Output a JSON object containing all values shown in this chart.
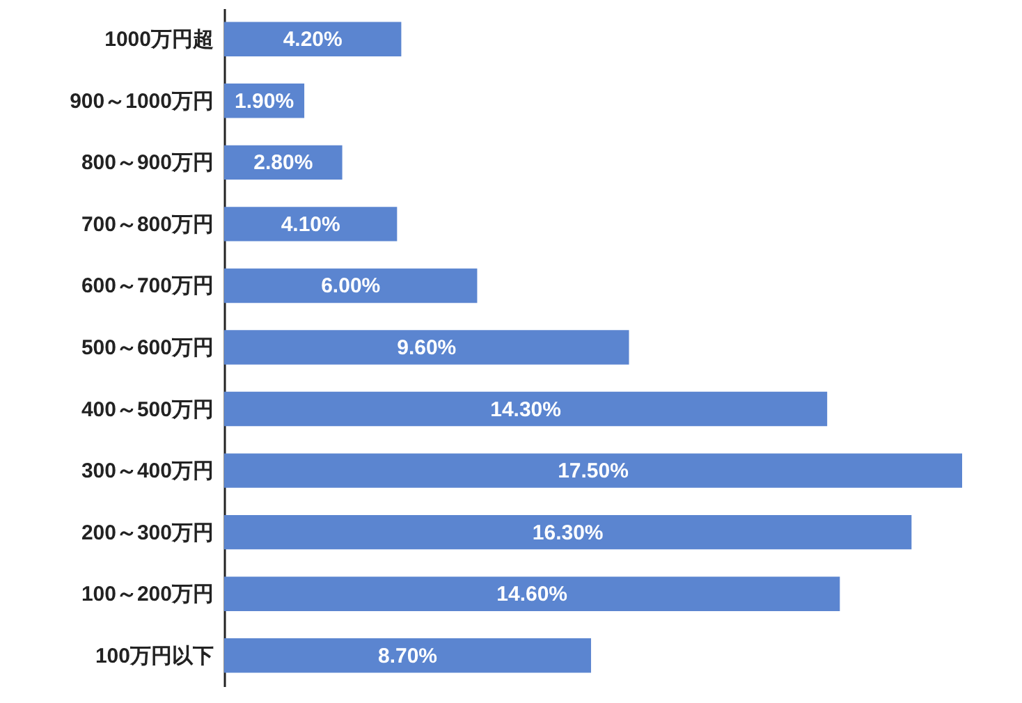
{
  "chart_data": {
    "type": "bar",
    "orientation": "horizontal",
    "categories": [
      "1000万円超",
      "900～1000万円",
      "800～900万円",
      "700～800万円",
      "600～700万円",
      "500～600万円",
      "400～500万円",
      "300～400万円",
      "200～300万円",
      "100～200万円",
      "100万円以下"
    ],
    "values": [
      4.2,
      1.9,
      2.8,
      4.1,
      6.0,
      9.6,
      14.3,
      17.5,
      16.3,
      14.6,
      8.7
    ],
    "value_labels": [
      "4.20%",
      "1.90%",
      "2.80%",
      "4.10%",
      "6.00%",
      "9.60%",
      "14.30%",
      "17.50%",
      "16.30%",
      "14.60%",
      "8.70%"
    ],
    "color": "#5b85d0"
  }
}
